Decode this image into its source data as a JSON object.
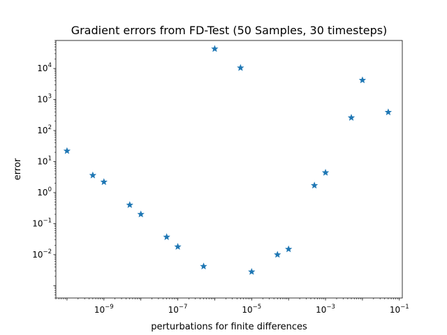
{
  "chart_data": {
    "type": "scatter",
    "title": "Gradient errors from FD-Test (50 Samples, 30 timesteps)",
    "xlabel": "perturbations for finite differences",
    "ylabel": "error",
    "xscale": "log",
    "yscale": "log",
    "xlim": [
      5e-11,
      0.12
    ],
    "ylim": [
      0.0004,
      80000
    ],
    "grid": false,
    "legend": "none",
    "marker": "star",
    "marker_color": "#1f77b4",
    "xticks": [
      {
        "base": "10",
        "exp": "−9",
        "value": 1e-09
      },
      {
        "base": "10",
        "exp": "−7",
        "value": 1e-07
      },
      {
        "base": "10",
        "exp": "−5",
        "value": 1e-05
      },
      {
        "base": "10",
        "exp": "−3",
        "value": 0.001
      },
      {
        "base": "10",
        "exp": "−1",
        "value": 0.1
      }
    ],
    "yticks": [
      {
        "base": "10",
        "exp": "−2",
        "value": 0.01
      },
      {
        "base": "10",
        "exp": "−1",
        "value": 0.1
      },
      {
        "base": "10",
        "exp": "0",
        "value": 1.0
      },
      {
        "base": "10",
        "exp": "1",
        "value": 10.0
      },
      {
        "base": "10",
        "exp": "2",
        "value": 100.0
      },
      {
        "base": "10",
        "exp": "3",
        "value": 1000.0
      },
      {
        "base": "10",
        "exp": "4",
        "value": 10000.0
      }
    ],
    "points": [
      {
        "x": 1e-10,
        "y": 22
      },
      {
        "x": 5e-10,
        "y": 3.6
      },
      {
        "x": 1e-09,
        "y": 2.2
      },
      {
        "x": 5e-09,
        "y": 0.4
      },
      {
        "x": 1e-08,
        "y": 0.2
      },
      {
        "x": 5e-08,
        "y": 0.037
      },
      {
        "x": 1e-07,
        "y": 0.018
      },
      {
        "x": 5e-07,
        "y": 0.0042
      },
      {
        "x": 1e-06,
        "y": 43000
      },
      {
        "x": 5e-06,
        "y": 10500
      },
      {
        "x": 1e-05,
        "y": 0.0028
      },
      {
        "x": 5e-05,
        "y": 0.01
      },
      {
        "x": 0.0001,
        "y": 0.015
      },
      {
        "x": 0.0005,
        "y": 1.7
      },
      {
        "x": 0.001,
        "y": 4.4
      },
      {
        "x": 0.005,
        "y": 260
      },
      {
        "x": 0.01,
        "y": 4200
      },
      {
        "x": 0.05,
        "y": 390
      }
    ]
  }
}
